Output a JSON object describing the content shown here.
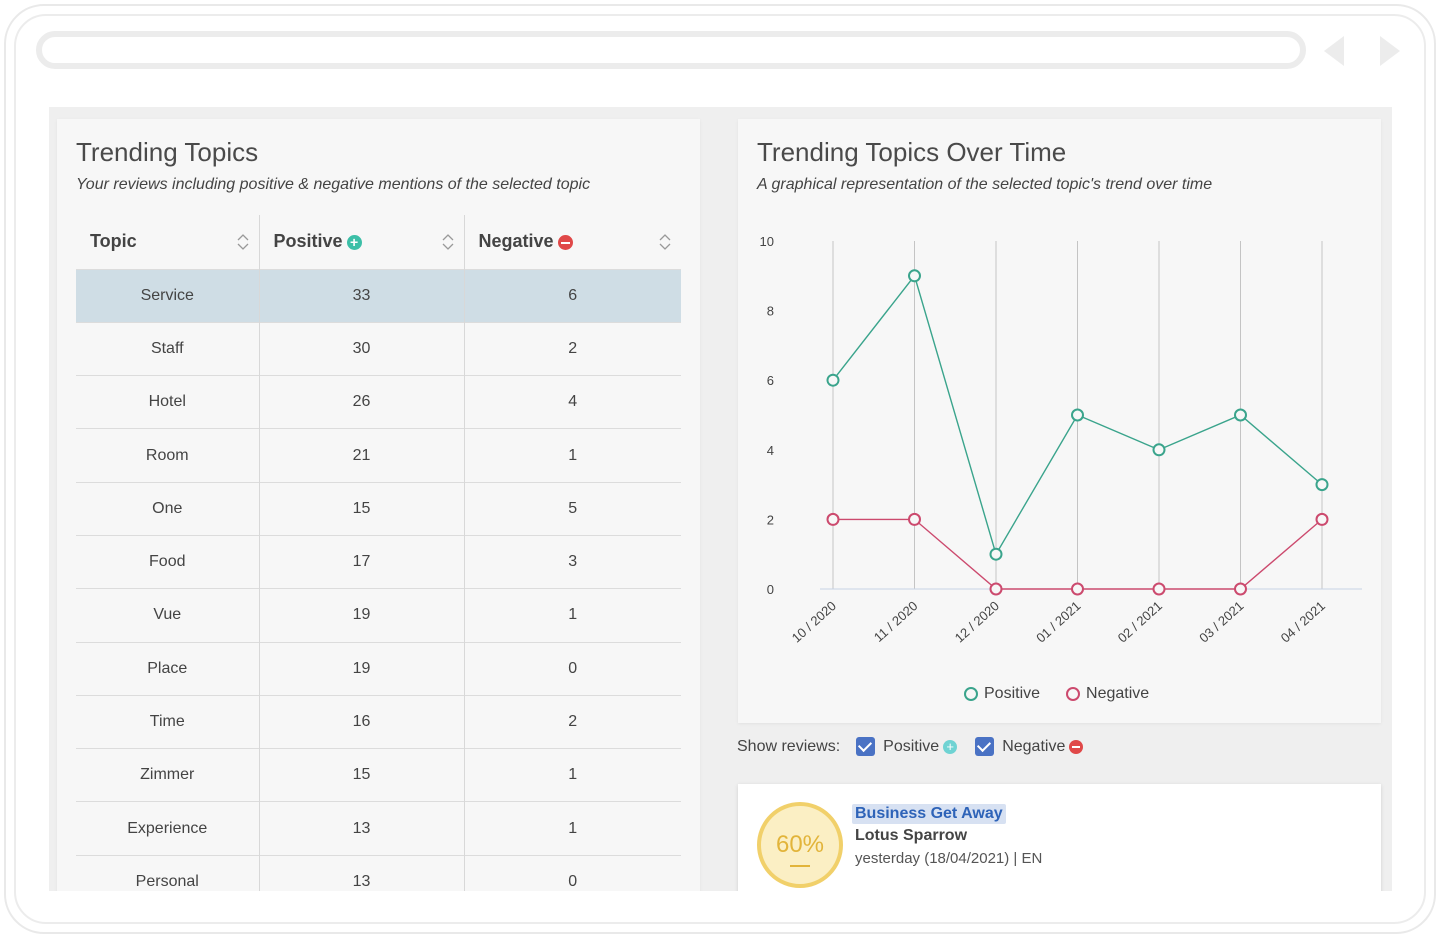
{
  "trending_topics": {
    "title": "Trending Topics",
    "subtitle": "Your reviews including positive & negative mentions of the selected topic",
    "columns": [
      "Topic",
      "Positive",
      "Negative"
    ],
    "rows": [
      {
        "topic": "Service",
        "positive": "33",
        "negative": "6",
        "selected": true
      },
      {
        "topic": "Staff",
        "positive": "30",
        "negative": "2"
      },
      {
        "topic": "Hotel",
        "positive": "26",
        "negative": "4"
      },
      {
        "topic": "Room",
        "positive": "21",
        "negative": "1"
      },
      {
        "topic": "One",
        "positive": "15",
        "negative": "5"
      },
      {
        "topic": "Food",
        "positive": "17",
        "negative": "3"
      },
      {
        "topic": "Vue",
        "positive": "19",
        "negative": "1"
      },
      {
        "topic": "Place",
        "positive": "19",
        "negative": "0"
      },
      {
        "topic": "Time",
        "positive": "16",
        "negative": "2"
      },
      {
        "topic": "Zimmer",
        "positive": "15",
        "negative": "1"
      },
      {
        "topic": "Experience",
        "positive": "13",
        "negative": "1"
      },
      {
        "topic": "Personal",
        "positive": "13",
        "negative": "0"
      }
    ]
  },
  "trend_chart": {
    "title": "Trending Topics Over Time",
    "subtitle": "A graphical representation of the selected topic's trend over time"
  },
  "chart_data": {
    "type": "line",
    "categories": [
      "10 / 2020",
      "11 / 2020",
      "12 / 2020",
      "01 / 2021",
      "02 / 2021",
      "03 / 2021",
      "04 / 2021"
    ],
    "series": [
      {
        "name": "Positive",
        "values": [
          6,
          9,
          1,
          5,
          4,
          5,
          3
        ],
        "color": "#3aa48c"
      },
      {
        "name": "Negative",
        "values": [
          2,
          2,
          0,
          0,
          0,
          0,
          2
        ],
        "color": "#cc4a6e"
      }
    ],
    "yticks": [
      "0",
      "2",
      "4",
      "6",
      "8",
      "10"
    ],
    "ylim": [
      0,
      10
    ],
    "legend_placement": "bottom-center",
    "grid": "vertical"
  },
  "show_reviews": {
    "label": "Show reviews:",
    "positive_label": "Positive",
    "negative_label": "Negative"
  },
  "review": {
    "score": "60%",
    "tag": "Business Get Away",
    "author": "Lotus Sparrow",
    "meta": "yesterday (18/04/2021) | EN"
  }
}
